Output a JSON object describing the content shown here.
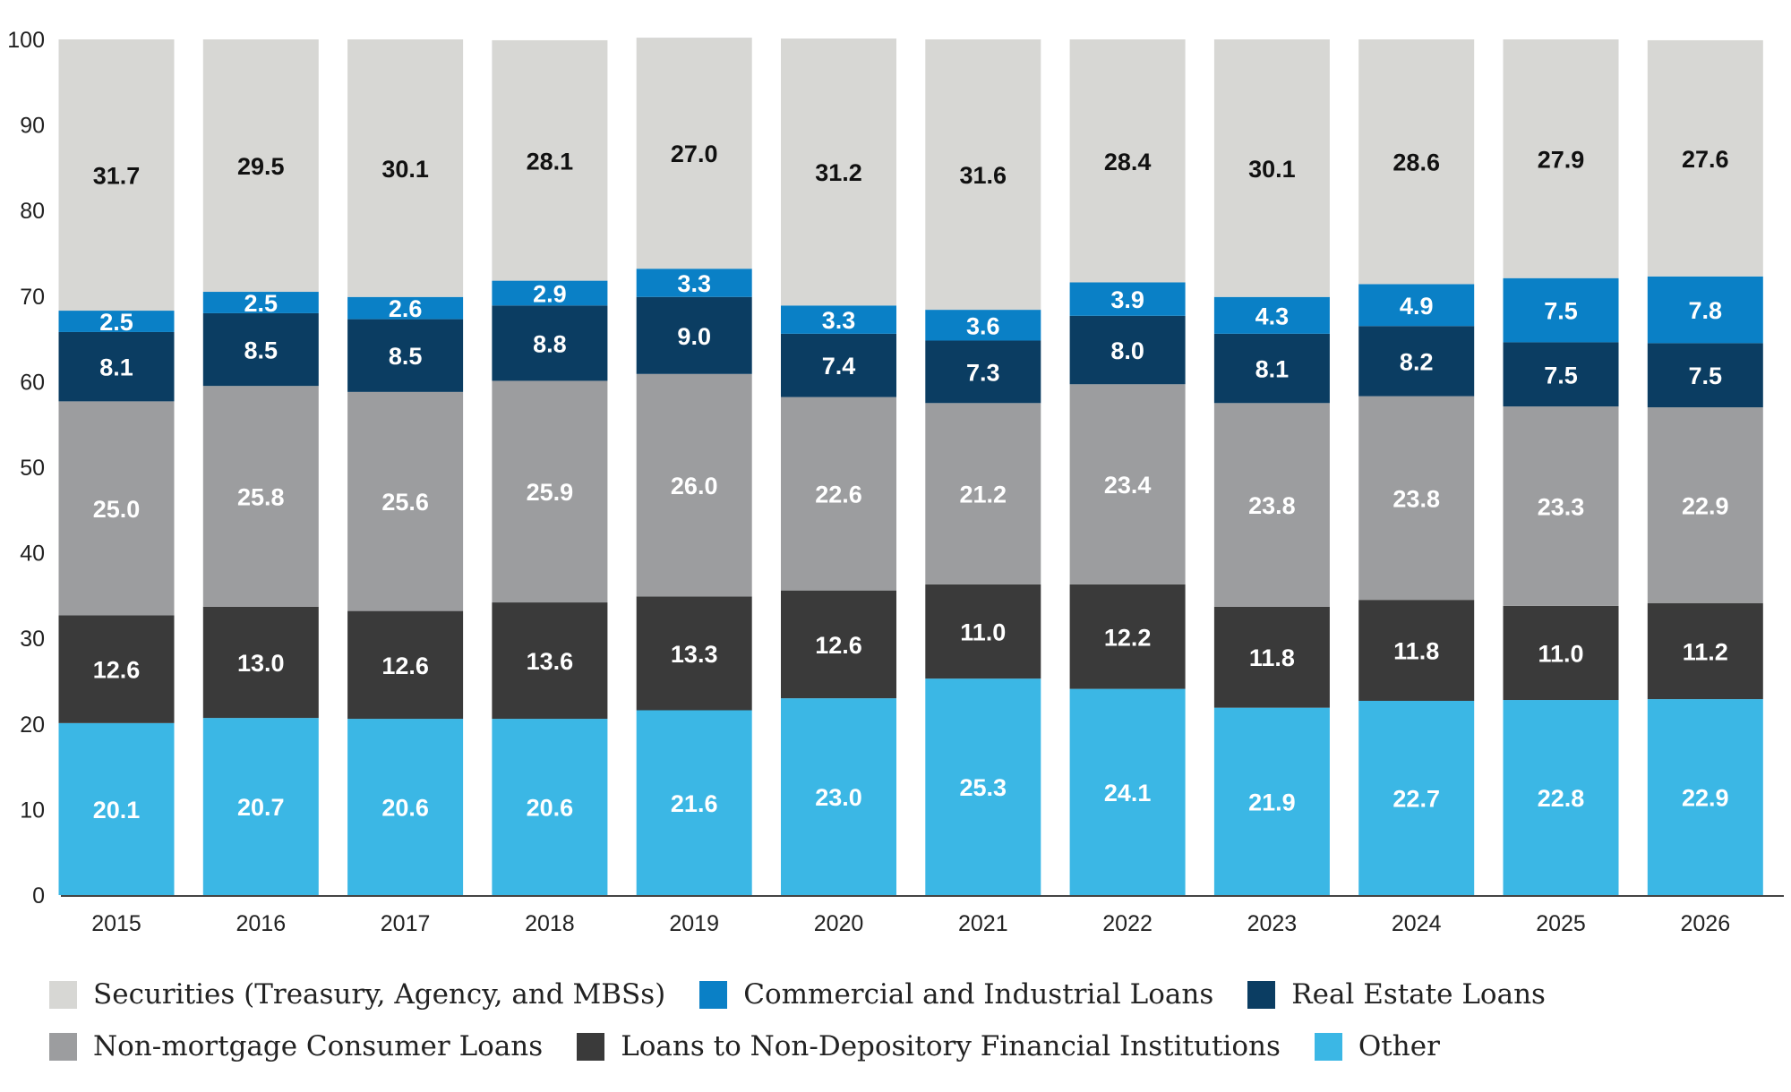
{
  "chart_data": {
    "type": "bar",
    "stacked": true,
    "ylim": [
      0,
      100
    ],
    "yticks": [
      0,
      10,
      20,
      30,
      40,
      50,
      60,
      70,
      80,
      90,
      100
    ],
    "grid": false,
    "legend_position": "bottom",
    "categories": [
      "2015",
      "2016",
      "2017",
      "2018",
      "2019",
      "2020",
      "2021",
      "2022",
      "2023",
      "2024",
      "2025",
      "2026"
    ],
    "series": [
      {
        "name": "Other",
        "color": "#3bb7e5",
        "label_color": "#ffffff",
        "values": [
          20.1,
          20.7,
          20.6,
          20.6,
          21.6,
          23.0,
          25.3,
          24.1,
          21.9,
          22.7,
          22.8,
          22.9
        ],
        "labels": [
          "20.1",
          "20.7",
          "20.6",
          "20.6",
          "21.6",
          "23.0",
          "25.3",
          "24.1",
          "21.9",
          "22.7",
          "22.8",
          "22.9"
        ]
      },
      {
        "name": "Loans to Non-Depository Financial Institutions",
        "color": "#3a3a3a",
        "label_color": "#ffffff",
        "values": [
          12.6,
          13.0,
          12.6,
          13.6,
          13.3,
          12.6,
          11.0,
          12.2,
          11.8,
          11.8,
          11.0,
          11.2
        ],
        "labels": [
          "12.6",
          "13.0",
          "12.6",
          "13.6",
          "13.3",
          "12.6",
          "11.0",
          "12.2",
          "11.8",
          "11.8",
          "11.0",
          "11.2"
        ]
      },
      {
        "name": "Non-mortgage Consumer Loans",
        "color": "#9c9d9f",
        "label_color": "#ffffff",
        "values": [
          25.0,
          25.8,
          25.6,
          25.9,
          26.0,
          22.6,
          21.2,
          23.4,
          23.8,
          23.8,
          23.3,
          22.9
        ],
        "labels": [
          "25.0",
          "25.8",
          "25.6",
          "25.9",
          "26.0",
          "22.6",
          "21.2",
          "23.4",
          "23.8",
          "23.8",
          "23.3",
          "22.9"
        ]
      },
      {
        "name": "Real Estate Loans",
        "color": "#0b3d62",
        "label_color": "#ffffff",
        "values": [
          8.1,
          8.5,
          8.5,
          8.8,
          9.0,
          7.4,
          7.3,
          8.0,
          8.1,
          8.2,
          7.5,
          7.5
        ],
        "labels": [
          "8.1",
          "8.5",
          "8.5",
          "8.8",
          "9.0",
          "7.4",
          "7.3",
          "8.0",
          "8.1",
          "8.2",
          "7.5",
          "7.5"
        ]
      },
      {
        "name": "Commercial and Industrial Loans",
        "color": "#0a80c6",
        "label_color": "#ffffff",
        "values": [
          2.5,
          2.5,
          2.6,
          2.9,
          3.3,
          3.3,
          3.6,
          3.9,
          4.3,
          4.9,
          7.5,
          7.8
        ],
        "labels": [
          "2.5",
          "2.5",
          "2.6",
          "2.9",
          "3.3",
          "3.3",
          "3.6",
          "3.9",
          "4.3",
          "4.9",
          "7.5",
          "7.8"
        ]
      },
      {
        "name": "Securities (Treasury, Agency, and MBSs)",
        "color": "#d7d7d4",
        "label_color": "#111111",
        "values": [
          31.7,
          29.5,
          30.1,
          28.1,
          27.0,
          31.2,
          31.6,
          28.4,
          30.1,
          28.6,
          27.9,
          27.6
        ],
        "labels": [
          "31.7",
          "29.5",
          "30.1",
          "28.1",
          "27.0",
          "31.2",
          "31.6",
          "28.4",
          "30.1",
          "28.6",
          "27.9",
          "27.6"
        ]
      }
    ],
    "legend": [
      [
        {
          "series": 5,
          "label": "Securities (Treasury, Agency, and MBSs)"
        },
        {
          "series": 4,
          "label": "Commercial and Industrial Loans"
        },
        {
          "series": 3,
          "label": "Real Estate Loans"
        }
      ],
      [
        {
          "series": 2,
          "label": "Non-mortgage Consumer Loans"
        },
        {
          "series": 1,
          "label": "Loans to Non-Depository Financial Institutions"
        },
        {
          "series": 0,
          "label": "Other"
        }
      ]
    ]
  }
}
